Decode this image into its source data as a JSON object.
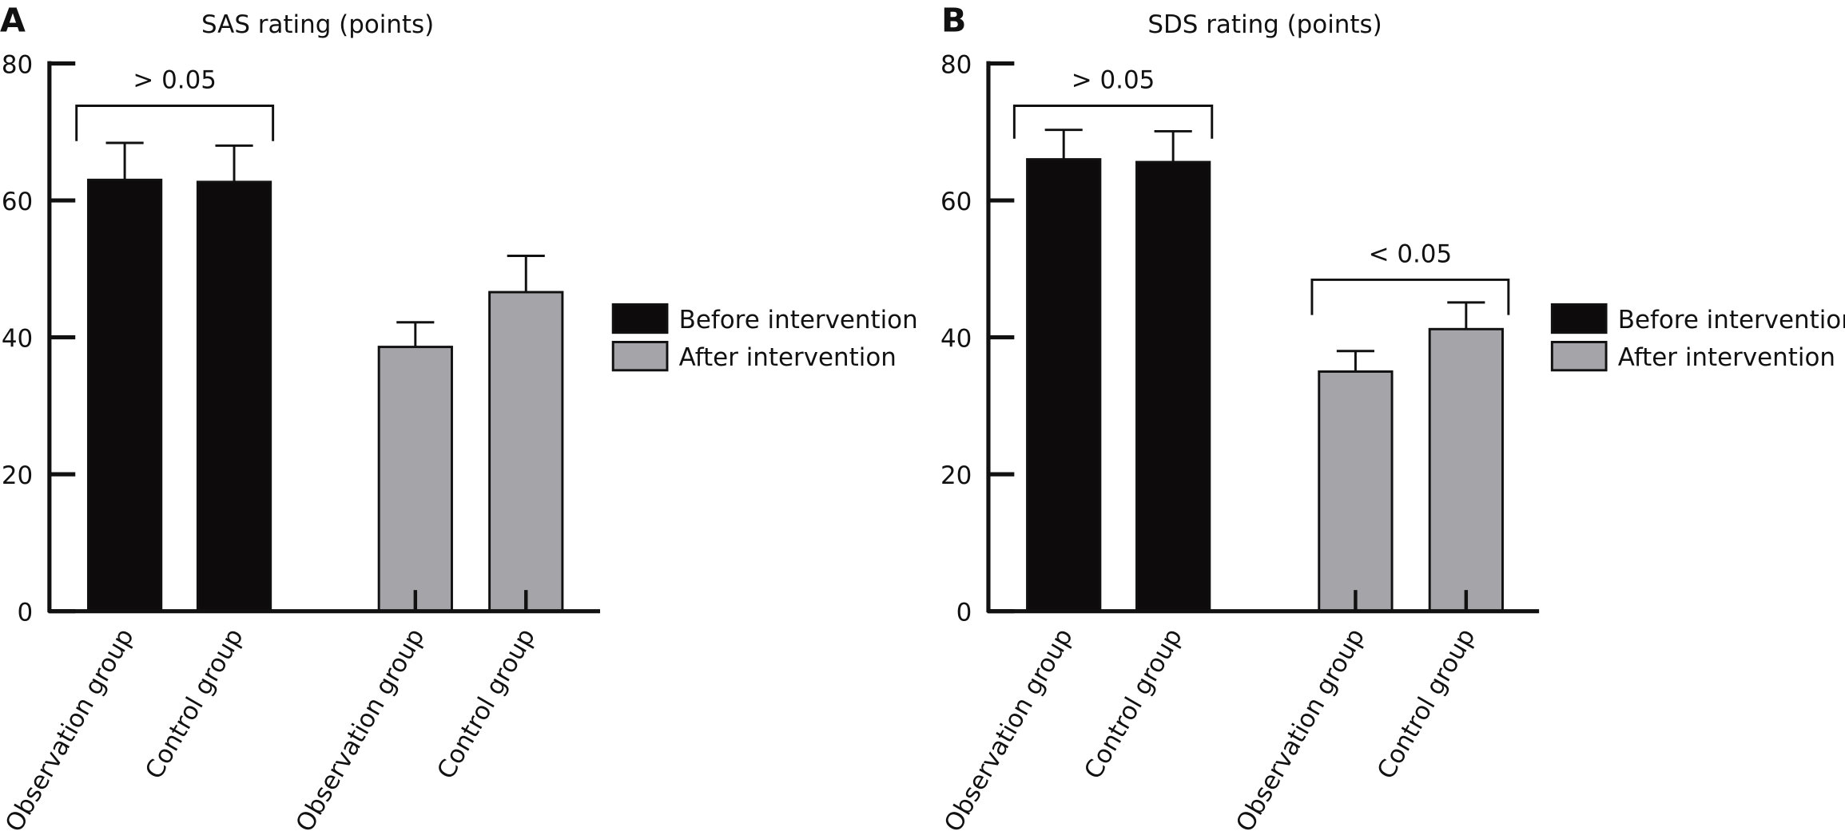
{
  "chart_data": [
    {
      "panel_label": "A",
      "type": "bar",
      "title": "SAS rating (points)",
      "categories": [
        "Observation group",
        "Control group",
        "Observation group",
        "Control group"
      ],
      "series": [
        {
          "name": "Before intervention",
          "color": "#0d0b0c",
          "values": [
            63.0,
            62.7,
            null,
            null
          ],
          "errors": [
            5.4,
            5.3,
            null,
            null
          ]
        },
        {
          "name": "After intervention",
          "color": "#a5a4a9",
          "values": [
            null,
            null,
            38.6,
            46.6
          ],
          "errors": [
            null,
            null,
            3.6,
            5.3
          ]
        }
      ],
      "ylim": [
        0,
        80
      ],
      "yticks": [
        "0",
        "20",
        "40",
        "60",
        "80"
      ],
      "legend_position": "right",
      "annotations": [
        {
          "text": "> 0.05",
          "from": 0,
          "to": 1
        }
      ]
    },
    {
      "panel_label": "B",
      "type": "bar",
      "title": "SDS rating (points)",
      "categories": [
        "Observation group",
        "Control group",
        "Observation group",
        "Control group"
      ],
      "series": [
        {
          "name": "Before intervention",
          "color": "#0d0b0c",
          "values": [
            66.0,
            65.6,
            null,
            null
          ],
          "errors": [
            4.3,
            4.5,
            null,
            null
          ]
        },
        {
          "name": "After intervention",
          "color": "#a5a4a9",
          "values": [
            null,
            null,
            35.0,
            41.2
          ],
          "errors": [
            null,
            null,
            3.0,
            3.9
          ]
        }
      ],
      "ylim": [
        0,
        80
      ],
      "yticks": [
        "0",
        "20",
        "40",
        "60",
        "80"
      ],
      "legend_position": "right",
      "annotations": [
        {
          "text": "> 0.05",
          "from": 0,
          "to": 1
        },
        {
          "text": "< 0.05",
          "from": 2,
          "to": 3
        }
      ]
    }
  ]
}
